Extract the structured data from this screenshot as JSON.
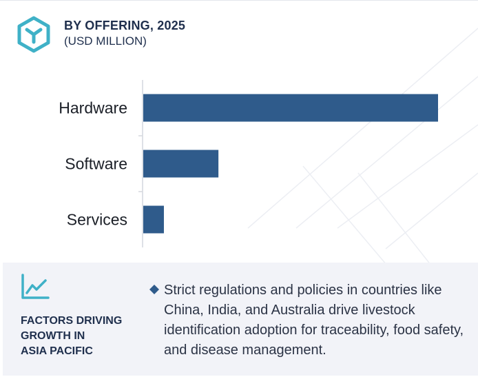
{
  "header": {
    "title": "BY OFFERING, 2025",
    "subtitle": "(USD MILLION)",
    "icon": "cube-logo-icon"
  },
  "colors": {
    "bar": "#2f5b8b",
    "accent": "#3fb1c7",
    "heading": "#1f2f4d",
    "footer_bg": "#f2f3f8"
  },
  "chart_data": {
    "type": "bar",
    "orientation": "horizontal",
    "categories": [
      "Hardware",
      "Software",
      "Services"
    ],
    "values": [
      100,
      25.5,
      7
    ],
    "value_units": "relative (no axis scale printed)",
    "xlim": [
      0,
      100
    ],
    "title": "BY OFFERING, 2025",
    "xlabel": "",
    "ylabel": "",
    "grid": false,
    "legend": "none"
  },
  "footer": {
    "icon": "trend-line-icon",
    "heading_lines": [
      "FACTORS DRIVING",
      "GROWTH IN",
      "ASIA PACIFIC"
    ],
    "bullet_icon": "diamond-bullet-icon",
    "text": "Strict regulations and policies in countries like China, India, and Australia drive livestock identification adoption for traceability, food safety, and disease management."
  }
}
